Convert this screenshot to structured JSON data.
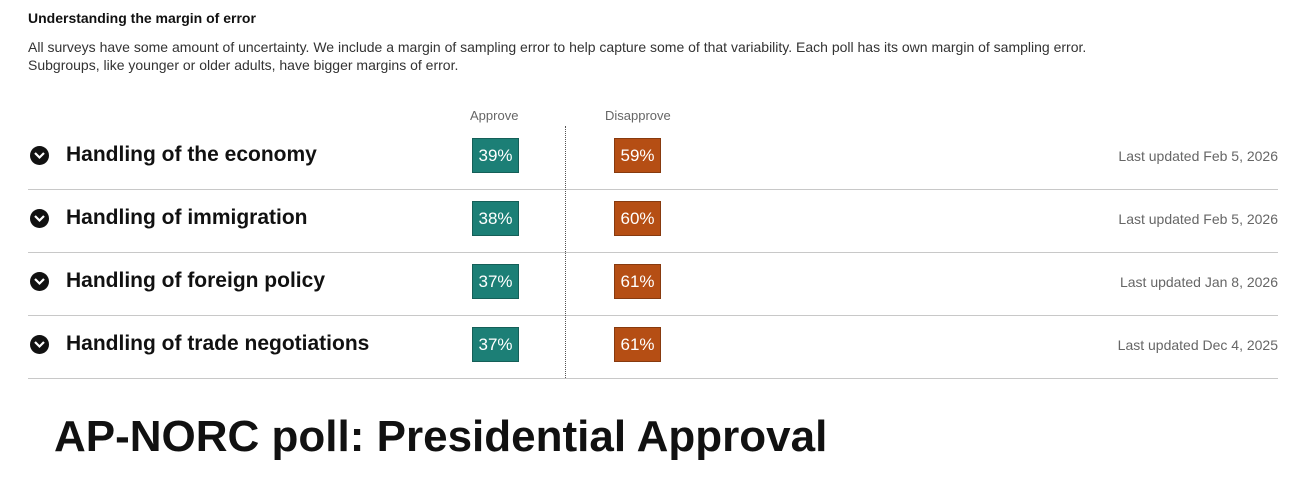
{
  "moe": {
    "title": "Understanding the margin of error",
    "line1": "All surveys have some amount of uncertainty. We include a margin of sampling error to help capture some of that variability. Each poll has its own margin of sampling error.",
    "line2": "Subgroups, like younger or older adults, have bigger margins of error."
  },
  "columns": {
    "approve": "Approve",
    "disapprove": "Disapprove"
  },
  "headline": "AP-NORC poll: Presidential Approval",
  "colors": {
    "approve": "#1c7f76",
    "disapprove": "#b54e14"
  },
  "chart_data": {
    "type": "table",
    "series": [
      {
        "name": "Approve",
        "values": [
          39,
          38,
          37,
          37
        ]
      },
      {
        "name": "Disapprove",
        "values": [
          59,
          60,
          61,
          61
        ]
      }
    ],
    "rows": [
      {
        "label": "Handling of the economy",
        "approve": "39%",
        "disapprove": "59%",
        "updated": "Last updated Feb 5, 2026"
      },
      {
        "label": "Handling of immigration",
        "approve": "38%",
        "disapprove": "60%",
        "updated": "Last updated Feb 5, 2026"
      },
      {
        "label": "Handling of foreign policy",
        "approve": "37%",
        "disapprove": "61%",
        "updated": "Last updated Jan 8, 2026"
      },
      {
        "label": "Handling of trade negotiations",
        "approve": "37%",
        "disapprove": "61%",
        "updated": "Last updated Dec 4, 2025"
      }
    ]
  }
}
